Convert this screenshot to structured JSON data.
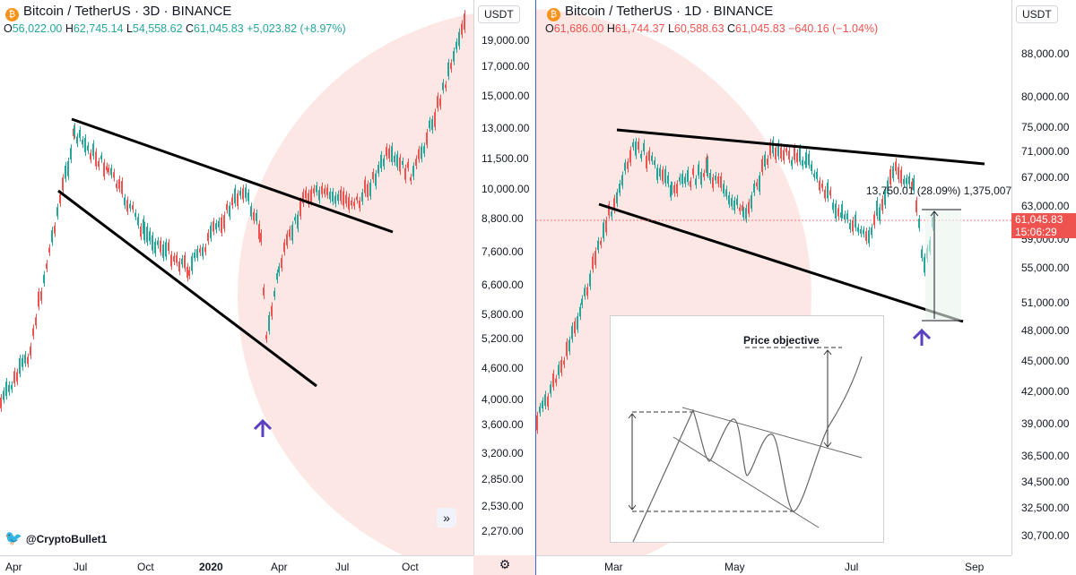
{
  "left_chart": {
    "symbol": "Bitcoin / TetherUS · 3D · BINANCE",
    "logo": "₿",
    "ohlc": {
      "o": "56,022.00",
      "h": "62,745.14",
      "l": "54,558.62",
      "c": "61,045.83",
      "change": "+5,023.82 (+8.97%)"
    },
    "currency_button": "USDT",
    "y_ticks": [
      "19,000.00",
      "17,000.00",
      "15,000.00",
      "13,000.00",
      "11,500.00",
      "10,000.00",
      "8,800.00",
      "7,600.00",
      "6,600.00",
      "5,800.00",
      "5,200.00",
      "4,600.00",
      "4,000.00",
      "3,600.00",
      "3,200.00",
      "2,850.00",
      "2,530.00",
      "2,270.00"
    ],
    "x_ticks": [
      "Apr",
      "Jul",
      "Oct",
      "2020",
      "Apr",
      "Jul",
      "Oct"
    ],
    "expand_icon": "»"
  },
  "right_chart": {
    "symbol": "Bitcoin / TetherUS · 1D · BINANCE",
    "logo": "₿",
    "ohlc": {
      "o": "61,686.00",
      "h": "61,744.37",
      "l": "60,588.63",
      "c": "61,045.83",
      "change": "−640.16 (−1.04%)"
    },
    "currency_button": "USDT",
    "y_ticks": [
      "88,000.00",
      "80,000.00",
      "75,000.00",
      "71,000.00",
      "67,000.00",
      "63,000.00",
      "59,000.00",
      "55,000.00",
      "51,000.00",
      "48,000.00",
      "45,000.00",
      "42,000.00",
      "39,000.00",
      "36,500.00",
      "34,500.00",
      "32,500.00",
      "30,700.00"
    ],
    "x_ticks": [
      "Mar",
      "May",
      "Jul",
      "Sep"
    ],
    "last_price": "61,045.83",
    "countdown": "15:06:29",
    "measure_label": "13,750.01 (28.09%) 1,375,007",
    "inset_title": "Price objective"
  },
  "watermark_author": "@CryptoBullet1",
  "colors": {
    "up": "#26a69a",
    "down": "#ef5350",
    "divider": "#3a62d6",
    "arrow": "#5a3fc0"
  }
}
